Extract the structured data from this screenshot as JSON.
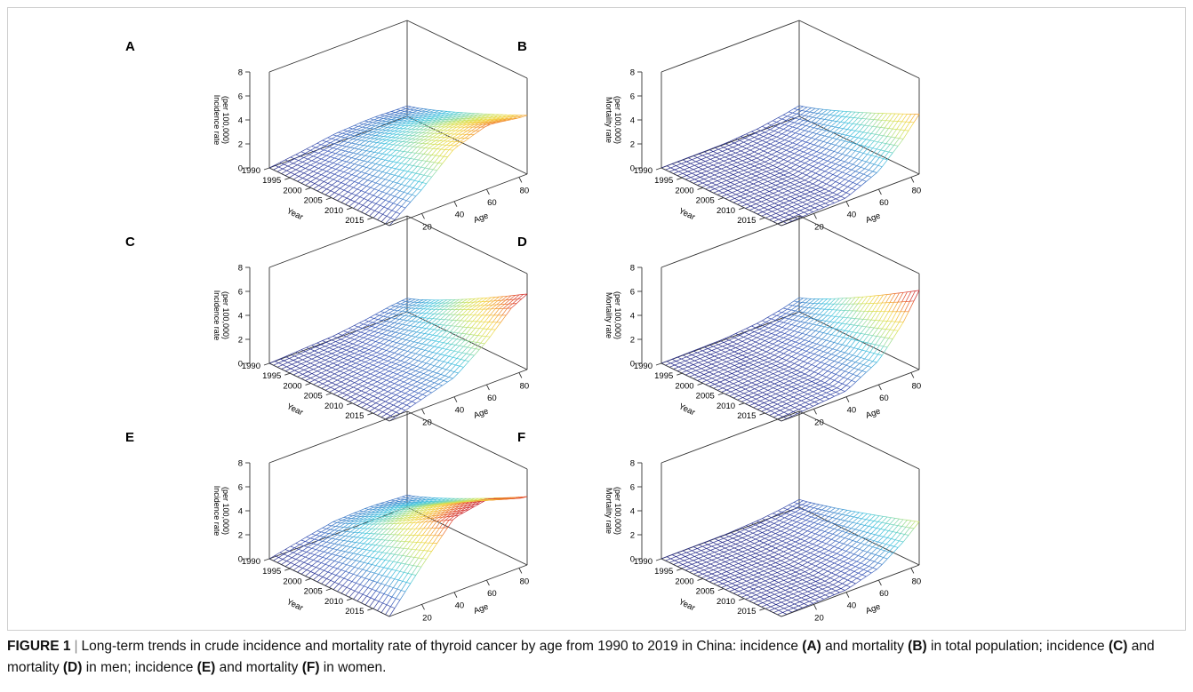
{
  "figure": {
    "label": "FIGURE 1",
    "separator": "|",
    "caption_parts": [
      {
        "text": "Long-term trends in crude incidence and mortality rate of thyroid cancer by age from 1990 to 2019 in China: incidence ",
        "bold": false
      },
      {
        "text": "(A)",
        "bold": true
      },
      {
        "text": " and mortality ",
        "bold": false
      },
      {
        "text": "(B)",
        "bold": true
      },
      {
        "text": " in total population; incidence ",
        "bold": false
      },
      {
        "text": "(C)",
        "bold": true
      },
      {
        "text": " and mortality ",
        "bold": false
      },
      {
        "text": "(D)",
        "bold": true
      },
      {
        "text": " in men; incidence ",
        "bold": false
      },
      {
        "text": "(E)",
        "bold": true
      },
      {
        "text": " and mortality ",
        "bold": false
      },
      {
        "text": "(F)",
        "bold": true
      },
      {
        "text": " in women.",
        "bold": false
      }
    ]
  },
  "chart_data": [
    {
      "panel": "A",
      "type": "surface",
      "metric": "incidence",
      "zlabel_line1": "(per 100,000)",
      "zlabel_line2": "Incidence rate",
      "xlabel": "Year",
      "ylabel": "Age",
      "year_ticks": [
        1990,
        1995,
        2000,
        2005,
        2010,
        2015
      ],
      "age_ticks": [
        20,
        40,
        60,
        80
      ],
      "z_ticks": [
        0,
        2,
        4,
        6,
        8
      ],
      "year_range": [
        1990,
        2019
      ],
      "age_range": [
        0,
        85
      ],
      "zlim": [
        0,
        8
      ],
      "z_at_2019_by_age": {
        "0": 0.0,
        "20": 2.0,
        "40": 4.4,
        "60": 5.3,
        "85": 4.9
      }
    },
    {
      "panel": "B",
      "type": "surface",
      "metric": "mortality",
      "zlabel_line1": "(per 100,000)",
      "zlabel_line2": "Mortality rate",
      "xlabel": "Year",
      "ylabel": "Age",
      "year_ticks": [
        1990,
        1995,
        2000,
        2005,
        2010,
        2015
      ],
      "age_ticks": [
        20,
        40,
        60,
        80
      ],
      "z_ticks": [
        0,
        2,
        4,
        6,
        8
      ],
      "year_range": [
        1990,
        2019
      ],
      "age_range": [
        0,
        85
      ],
      "zlim": [
        0,
        8
      ],
      "z_at_2019_by_age": {
        "0": 0.0,
        "40": 0.3,
        "60": 1.5,
        "75": 3.4,
        "85": 5.0
      }
    },
    {
      "panel": "C",
      "type": "surface",
      "metric": "incidence",
      "zlabel_line1": "(per 100,000)",
      "zlabel_line2": "Incidence rate",
      "xlabel": "Year",
      "ylabel": "Age",
      "year_ticks": [
        1990,
        1995,
        2000,
        2005,
        2010,
        2015
      ],
      "age_ticks": [
        20,
        40,
        60,
        80
      ],
      "z_ticks": [
        0,
        2,
        4,
        6,
        8
      ],
      "year_range": [
        1990,
        2019
      ],
      "age_range": [
        0,
        85
      ],
      "zlim": [
        0,
        8
      ],
      "z_at_2019_by_age": {
        "0": 0.0,
        "40": 1.6,
        "60": 3.6,
        "75": 5.6,
        "85": 6.3
      }
    },
    {
      "panel": "D",
      "type": "surface",
      "metric": "mortality",
      "zlabel_line1": "(per 100,000)",
      "zlabel_line2": "Mortality rate",
      "xlabel": "Year",
      "ylabel": "Age",
      "year_ticks": [
        1990,
        1995,
        2000,
        2005,
        2010,
        2015
      ],
      "age_ticks": [
        20,
        40,
        60,
        80
      ],
      "z_ticks": [
        0,
        2,
        4,
        6,
        8
      ],
      "year_range": [
        1990,
        2019
      ],
      "age_range": [
        0,
        85
      ],
      "zlim": [
        0,
        8
      ],
      "z_at_2019_by_age": {
        "0": 0.0,
        "40": 0.5,
        "60": 2.0,
        "75": 4.4,
        "85": 6.6
      }
    },
    {
      "panel": "E",
      "type": "surface",
      "metric": "incidence",
      "zlabel_line1": "(per 100,000)",
      "zlabel_line2": "Incidence rate",
      "xlabel": "Year",
      "ylabel": "Age",
      "year_ticks": [
        1990,
        1995,
        2000,
        2005,
        2010,
        2015
      ],
      "age_ticks": [
        20,
        40,
        60,
        80
      ],
      "z_ticks": [
        0,
        2,
        4,
        6,
        8
      ],
      "year_range": [
        1990,
        2019
      ],
      "age_range": [
        0,
        85
      ],
      "zlim": [
        0,
        8
      ],
      "z_at_2019_by_age": {
        "0": 0.0,
        "20": 3.2,
        "40": 6.2,
        "60": 6.7,
        "85": 5.7
      }
    },
    {
      "panel": "F",
      "type": "surface",
      "metric": "mortality",
      "zlabel_line1": "(per 100,000)",
      "zlabel_line2": "Mortality rate",
      "xlabel": "Year",
      "ylabel": "Age",
      "year_ticks": [
        1990,
        1995,
        2000,
        2005,
        2010,
        2015
      ],
      "age_ticks": [
        20,
        40,
        60,
        80
      ],
      "z_ticks": [
        0,
        2,
        4,
        6,
        8
      ],
      "year_range": [
        1990,
        2019
      ],
      "age_range": [
        0,
        85
      ],
      "zlim": [
        0,
        8
      ],
      "z_at_2019_by_age": {
        "0": 0.0,
        "40": 0.2,
        "60": 1.0,
        "75": 2.4,
        "85": 3.6
      }
    }
  ],
  "colormap": [
    "#2b2f8c",
    "#3a56b8",
    "#3f8fd0",
    "#3ec3df",
    "#7fd8b0",
    "#cde35c",
    "#f3d540",
    "#f39a2e",
    "#e2472a",
    "#c9202a"
  ]
}
